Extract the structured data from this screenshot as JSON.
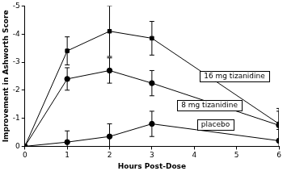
{
  "chart_data": {
    "type": "line",
    "x_label": "Hours Post-Dose",
    "y_label": "Improvement in Ashworth Score",
    "x": [
      0,
      1,
      2,
      3,
      6
    ],
    "xlim": [
      0,
      6
    ],
    "xticks": [
      0,
      1,
      2,
      3,
      4,
      5,
      6
    ],
    "ylim": [
      0,
      -5
    ],
    "yticks": [
      0,
      -1,
      -2,
      -3,
      -4,
      -5
    ],
    "grid": false,
    "series": [
      {
        "name": "16 mg tizanidine",
        "color": "#000000",
        "marker": "square",
        "line_style": "solid",
        "values": [
          0,
          -3.4,
          -4.1,
          -3.85,
          -0.8
        ],
        "errors": [
          0,
          0.5,
          0.9,
          0.6,
          0.55
        ]
      },
      {
        "name": "8 mg tizanidine",
        "color": "#000000",
        "marker": "circle",
        "line_style": "solid",
        "values": [
          0,
          -2.4,
          -2.7,
          -2.25,
          -0.75
        ],
        "errors": [
          0,
          0.4,
          0.45,
          0.45,
          0.5
        ]
      },
      {
        "name": "placebo",
        "color": "#000000",
        "marker": "circle",
        "line_style": "solid",
        "values": [
          0,
          -0.15,
          -0.35,
          -0.8,
          -0.2
        ],
        "errors": [
          0,
          0.4,
          0.45,
          0.45,
          0.4
        ]
      }
    ]
  }
}
